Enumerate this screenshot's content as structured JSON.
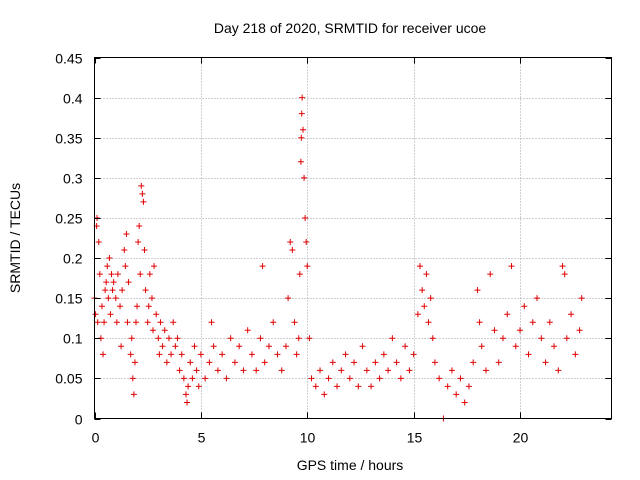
{
  "chart_data": {
    "type": "scatter",
    "title": "Day 218 of 2020, SRMTID for receiver ucoe",
    "xlabel": "GPS time / hours",
    "ylabel": "SRMTID / TECUs",
    "xlim": [
      0,
      24.3
    ],
    "ylim": [
      0,
      0.45
    ],
    "x_ticks": [
      0,
      5,
      10,
      15,
      20
    ],
    "y_ticks": [
      0,
      0.05,
      0.1,
      0.15,
      0.2,
      0.25,
      0.3,
      0.35,
      0.4,
      0.45
    ],
    "x_tick_labels": [
      "0",
      "5",
      "10",
      "15",
      "20"
    ],
    "y_tick_labels": [
      "0",
      "0.05",
      "0.1",
      "0.15",
      "0.2",
      "0.25",
      "0.3",
      "0.35",
      "0.4",
      "0.45"
    ],
    "grid": true,
    "marker": "+",
    "color": "#e00000",
    "series": [
      {
        "name": "SRMTID",
        "points": [
          [
            0.0,
            0.15
          ],
          [
            0.05,
            0.13
          ],
          [
            0.1,
            0.24
          ],
          [
            0.12,
            0.25
          ],
          [
            0.15,
            0.12
          ],
          [
            0.2,
            0.22
          ],
          [
            0.25,
            0.18
          ],
          [
            0.3,
            0.1
          ],
          [
            0.35,
            0.14
          ],
          [
            0.4,
            0.08
          ],
          [
            0.45,
            0.12
          ],
          [
            0.5,
            0.16
          ],
          [
            0.55,
            0.17
          ],
          [
            0.6,
            0.19
          ],
          [
            0.65,
            0.15
          ],
          [
            0.7,
            0.2
          ],
          [
            0.75,
            0.13
          ],
          [
            0.8,
            0.18
          ],
          [
            0.85,
            0.16
          ],
          [
            0.9,
            0.17
          ],
          [
            1.0,
            0.15
          ],
          [
            1.05,
            0.12
          ],
          [
            1.1,
            0.18
          ],
          [
            1.2,
            0.14
          ],
          [
            1.25,
            0.09
          ],
          [
            1.3,
            0.16
          ],
          [
            1.4,
            0.21
          ],
          [
            1.45,
            0.19
          ],
          [
            1.5,
            0.23
          ],
          [
            1.55,
            0.12
          ],
          [
            1.6,
            0.17
          ],
          [
            1.7,
            0.08
          ],
          [
            1.75,
            0.1
          ],
          [
            1.8,
            0.05
          ],
          [
            1.85,
            0.03
          ],
          [
            1.9,
            0.07
          ],
          [
            1.95,
            0.12
          ],
          [
            2.0,
            0.14
          ],
          [
            2.05,
            0.22
          ],
          [
            2.1,
            0.24
          ],
          [
            2.15,
            0.18
          ],
          [
            2.2,
            0.29
          ],
          [
            2.25,
            0.28
          ],
          [
            2.3,
            0.27
          ],
          [
            2.35,
            0.21
          ],
          [
            2.4,
            0.16
          ],
          [
            2.5,
            0.12
          ],
          [
            2.55,
            0.14
          ],
          [
            2.6,
            0.18
          ],
          [
            2.7,
            0.15
          ],
          [
            2.75,
            0.11
          ],
          [
            2.8,
            0.19
          ],
          [
            2.9,
            0.13
          ],
          [
            3.0,
            0.1
          ],
          [
            3.05,
            0.08
          ],
          [
            3.1,
            0.12
          ],
          [
            3.2,
            0.09
          ],
          [
            3.3,
            0.11
          ],
          [
            3.4,
            0.07
          ],
          [
            3.5,
            0.1
          ],
          [
            3.6,
            0.08
          ],
          [
            3.7,
            0.12
          ],
          [
            3.8,
            0.09
          ],
          [
            3.9,
            0.1
          ],
          [
            4.0,
            0.06
          ],
          [
            4.1,
            0.08
          ],
          [
            4.2,
            0.05
          ],
          [
            4.3,
            0.03
          ],
          [
            4.35,
            0.02
          ],
          [
            4.4,
            0.04
          ],
          [
            4.5,
            0.07
          ],
          [
            4.6,
            0.05
          ],
          [
            4.7,
            0.09
          ],
          [
            4.8,
            0.06
          ],
          [
            4.9,
            0.04
          ],
          [
            5.0,
            0.08
          ],
          [
            5.2,
            0.05
          ],
          [
            5.4,
            0.07
          ],
          [
            5.5,
            0.12
          ],
          [
            5.6,
            0.09
          ],
          [
            5.8,
            0.06
          ],
          [
            6.0,
            0.08
          ],
          [
            6.2,
            0.05
          ],
          [
            6.4,
            0.1
          ],
          [
            6.6,
            0.07
          ],
          [
            6.8,
            0.09
          ],
          [
            7.0,
            0.06
          ],
          [
            7.2,
            0.11
          ],
          [
            7.4,
            0.08
          ],
          [
            7.6,
            0.06
          ],
          [
            7.8,
            0.1
          ],
          [
            7.9,
            0.19
          ],
          [
            8.0,
            0.07
          ],
          [
            8.2,
            0.09
          ],
          [
            8.4,
            0.12
          ],
          [
            8.6,
            0.08
          ],
          [
            8.8,
            0.06
          ],
          [
            9.0,
            0.09
          ],
          [
            9.1,
            0.15
          ],
          [
            9.2,
            0.22
          ],
          [
            9.3,
            0.21
          ],
          [
            9.4,
            0.12
          ],
          [
            9.5,
            0.08
          ],
          [
            9.6,
            0.1
          ],
          [
            9.65,
            0.18
          ],
          [
            9.7,
            0.32
          ],
          [
            9.72,
            0.35
          ],
          [
            9.74,
            0.38
          ],
          [
            9.76,
            0.4
          ],
          [
            9.8,
            0.36
          ],
          [
            9.85,
            0.3
          ],
          [
            9.9,
            0.25
          ],
          [
            9.95,
            0.22
          ],
          [
            10.0,
            0.19
          ],
          [
            10.1,
            0.1
          ],
          [
            10.2,
            0.05
          ],
          [
            10.4,
            0.04
          ],
          [
            10.6,
            0.06
          ],
          [
            10.8,
            0.03
          ],
          [
            11.0,
            0.05
          ],
          [
            11.2,
            0.07
          ],
          [
            11.4,
            0.04
          ],
          [
            11.6,
            0.06
          ],
          [
            11.8,
            0.08
          ],
          [
            12.0,
            0.05
          ],
          [
            12.2,
            0.07
          ],
          [
            12.4,
            0.04
          ],
          [
            12.6,
            0.09
          ],
          [
            12.8,
            0.06
          ],
          [
            13.0,
            0.04
          ],
          [
            13.2,
            0.07
          ],
          [
            13.4,
            0.05
          ],
          [
            13.6,
            0.08
          ],
          [
            13.8,
            0.06
          ],
          [
            14.0,
            0.1
          ],
          [
            14.2,
            0.07
          ],
          [
            14.4,
            0.05
          ],
          [
            14.6,
            0.09
          ],
          [
            14.8,
            0.06
          ],
          [
            15.0,
            0.08
          ],
          [
            15.2,
            0.13
          ],
          [
            15.3,
            0.19
          ],
          [
            15.4,
            0.16
          ],
          [
            15.5,
            0.14
          ],
          [
            15.6,
            0.18
          ],
          [
            15.7,
            0.12
          ],
          [
            15.8,
            0.15
          ],
          [
            15.9,
            0.1
          ],
          [
            16.0,
            0.07
          ],
          [
            16.2,
            0.05
          ],
          [
            16.4,
            0.0
          ],
          [
            16.6,
            0.04
          ],
          [
            16.8,
            0.06
          ],
          [
            17.0,
            0.03
          ],
          [
            17.2,
            0.05
          ],
          [
            17.4,
            0.02
          ],
          [
            17.6,
            0.04
          ],
          [
            17.8,
            0.07
          ],
          [
            18.0,
            0.16
          ],
          [
            18.1,
            0.12
          ],
          [
            18.2,
            0.09
          ],
          [
            18.4,
            0.06
          ],
          [
            18.6,
            0.18
          ],
          [
            18.8,
            0.11
          ],
          [
            19.0,
            0.07
          ],
          [
            19.2,
            0.1
          ],
          [
            19.4,
            0.13
          ],
          [
            19.6,
            0.19
          ],
          [
            19.8,
            0.09
          ],
          [
            20.0,
            0.11
          ],
          [
            20.2,
            0.14
          ],
          [
            20.4,
            0.08
          ],
          [
            20.6,
            0.12
          ],
          [
            20.8,
            0.15
          ],
          [
            21.0,
            0.1
          ],
          [
            21.2,
            0.07
          ],
          [
            21.4,
            0.12
          ],
          [
            21.6,
            0.09
          ],
          [
            21.8,
            0.06
          ],
          [
            22.0,
            0.19
          ],
          [
            22.1,
            0.18
          ],
          [
            22.2,
            0.1
          ],
          [
            22.4,
            0.13
          ],
          [
            22.6,
            0.08
          ],
          [
            22.8,
            0.11
          ],
          [
            22.9,
            0.15
          ]
        ]
      }
    ]
  }
}
